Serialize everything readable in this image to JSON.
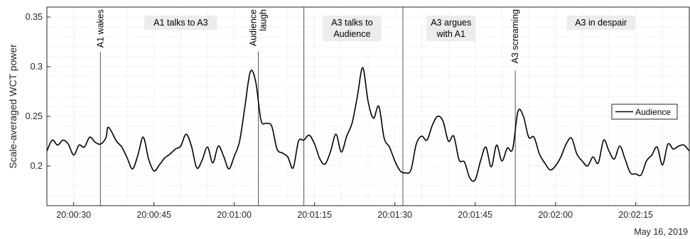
{
  "chart_data": {
    "type": "line",
    "title": "",
    "xlabel": "",
    "ylabel": "Scale-averaged WCT power",
    "x_range": [
      "20:00:25",
      "20:02:25"
    ],
    "ylim": [
      0.16,
      0.36
    ],
    "x_ticks": [
      "20:00:30",
      "20:00:45",
      "20:01:00",
      "20:01:15",
      "20:01:30",
      "20:01:45",
      "20:02:00",
      "20:02:15"
    ],
    "y_ticks": [
      0.2,
      0.25,
      0.3,
      0.35
    ],
    "y_tick_labels": [
      "0.2",
      "0.25",
      "0.3",
      "0.35"
    ],
    "date_label": "May 16, 2019",
    "grid": "minor dotted",
    "legend": {
      "placement": "right",
      "entries": [
        "Audience"
      ]
    },
    "series": [
      {
        "name": "Audience",
        "color": "#000000",
        "points": [
          [
            "20:00:25",
            0.215
          ],
          [
            "20:00:26",
            0.226
          ],
          [
            "20:00:27",
            0.221
          ],
          [
            "20:00:28",
            0.226
          ],
          [
            "20:00:29",
            0.222
          ],
          [
            "20:00:30",
            0.211
          ],
          [
            "20:00:31",
            0.221
          ],
          [
            "20:00:32",
            0.219
          ],
          [
            "20:00:33",
            0.229
          ],
          [
            "20:00:34",
            0.224
          ],
          [
            "20:00:35",
            0.222
          ],
          [
            "20:00:36",
            0.228
          ],
          [
            "20:00:36.5",
            0.239
          ],
          [
            "20:00:38",
            0.225
          ],
          [
            "20:00:39",
            0.219
          ],
          [
            "20:00:40",
            0.208
          ],
          [
            "20:00:41",
            0.197
          ],
          [
            "20:00:42",
            0.211
          ],
          [
            "20:00:43",
            0.229
          ],
          [
            "20:00:44",
            0.207
          ],
          [
            "20:00:45",
            0.195
          ],
          [
            "20:00:46",
            0.201
          ],
          [
            "20:00:47",
            0.208
          ],
          [
            "20:00:48",
            0.212
          ],
          [
            "20:00:49",
            0.217
          ],
          [
            "20:00:50",
            0.22
          ],
          [
            "20:00:51",
            0.232
          ],
          [
            "20:00:52",
            0.22
          ],
          [
            "20:00:53",
            0.198
          ],
          [
            "20:00:54",
            0.206
          ],
          [
            "20:00:55",
            0.219
          ],
          [
            "20:00:56",
            0.203
          ],
          [
            "20:00:57",
            0.22
          ],
          [
            "20:00:58",
            0.21
          ],
          [
            "20:00:59",
            0.197
          ],
          [
            "20:01:00",
            0.21
          ],
          [
            "20:01:01",
            0.225
          ],
          [
            "20:01:02",
            0.26
          ],
          [
            "20:01:03",
            0.295
          ],
          [
            "20:01:04",
            0.285
          ],
          [
            "20:01:05",
            0.246
          ],
          [
            "20:01:06",
            0.243
          ],
          [
            "20:01:07",
            0.24
          ],
          [
            "20:01:08",
            0.217
          ],
          [
            "20:01:09",
            0.213
          ],
          [
            "20:01:10",
            0.209
          ],
          [
            "20:01:11",
            0.198
          ],
          [
            "20:01:12",
            0.225
          ],
          [
            "20:01:13",
            0.226
          ],
          [
            "20:01:14",
            0.231
          ],
          [
            "20:01:15",
            0.222
          ],
          [
            "20:01:16",
            0.207
          ],
          [
            "20:01:17",
            0.202
          ],
          [
            "20:01:18",
            0.215
          ],
          [
            "20:01:19",
            0.232
          ],
          [
            "20:01:20",
            0.214
          ],
          [
            "20:01:21",
            0.23
          ],
          [
            "20:01:22",
            0.243
          ],
          [
            "20:01:23",
            0.27
          ],
          [
            "20:01:24",
            0.299
          ],
          [
            "20:01:25",
            0.265
          ],
          [
            "20:01:26",
            0.248
          ],
          [
            "20:01:27",
            0.26
          ],
          [
            "20:01:28",
            0.228
          ],
          [
            "20:01:29",
            0.219
          ],
          [
            "20:01:30",
            0.205
          ],
          [
            "20:01:31",
            0.195
          ],
          [
            "20:01:32",
            0.193
          ],
          [
            "20:01:33",
            0.196
          ],
          [
            "20:01:34",
            0.222
          ],
          [
            "20:01:35",
            0.23
          ],
          [
            "20:01:36",
            0.226
          ],
          [
            "20:01:37",
            0.241
          ],
          [
            "20:01:38",
            0.25
          ],
          [
            "20:01:39",
            0.245
          ],
          [
            "20:01:40",
            0.225
          ],
          [
            "20:01:41",
            0.23
          ],
          [
            "20:01:42",
            0.206
          ],
          [
            "20:01:43",
            0.204
          ],
          [
            "20:01:44",
            0.188
          ],
          [
            "20:01:45",
            0.186
          ],
          [
            "20:01:46",
            0.205
          ],
          [
            "20:01:47",
            0.219
          ],
          [
            "20:01:48",
            0.199
          ],
          [
            "20:01:49",
            0.221
          ],
          [
            "20:01:50",
            0.205
          ],
          [
            "20:01:51",
            0.218
          ],
          [
            "20:01:52",
            0.217
          ],
          [
            "20:01:53",
            0.255
          ],
          [
            "20:01:54",
            0.25
          ],
          [
            "20:01:55",
            0.229
          ],
          [
            "20:01:56",
            0.229
          ],
          [
            "20:01:57",
            0.212
          ],
          [
            "20:01:58",
            0.203
          ],
          [
            "20:01:59",
            0.196
          ],
          [
            "20:02:00",
            0.2
          ],
          [
            "20:02:01",
            0.209
          ],
          [
            "20:02:02",
            0.222
          ],
          [
            "20:02:03",
            0.228
          ],
          [
            "20:02:04",
            0.212
          ],
          [
            "20:02:05",
            0.205
          ],
          [
            "20:02:06",
            0.2
          ],
          [
            "20:02:07",
            0.209
          ],
          [
            "20:02:08",
            0.203
          ],
          [
            "20:02:09",
            0.226
          ],
          [
            "20:02:10",
            0.215
          ],
          [
            "20:02:11",
            0.207
          ],
          [
            "20:02:12",
            0.22
          ],
          [
            "20:02:13",
            0.207
          ],
          [
            "20:02:14",
            0.193
          ],
          [
            "20:02:15",
            0.192
          ],
          [
            "20:02:16",
            0.191
          ],
          [
            "20:02:17",
            0.205
          ],
          [
            "20:02:18",
            0.211
          ],
          [
            "20:02:19",
            0.219
          ],
          [
            "20:02:20",
            0.201
          ],
          [
            "20:02:21",
            0.222
          ],
          [
            "20:02:22",
            0.217
          ],
          [
            "20:02:23",
            0.22
          ],
          [
            "20:02:24",
            0.221
          ],
          [
            "20:02:25",
            0.215
          ]
        ]
      }
    ],
    "event_lines": [
      {
        "time": "20:00:35",
        "label": [
          "A1 wakes"
        ],
        "text_top": true
      },
      {
        "time": "20:01:04.5",
        "label": [
          "Audience",
          "laugh"
        ],
        "text_top": true
      },
      {
        "time": "20:01:13",
        "label": [],
        "text_top": true
      },
      {
        "time": "20:01:31.5",
        "label": [],
        "text_top": true
      },
      {
        "time": "20:01:52.5",
        "label": [
          "A3 screaming"
        ],
        "text_top": true
      }
    ],
    "phase_labels": [
      {
        "center": "20:00:50",
        "label": [
          "A1 talks to A3"
        ]
      },
      {
        "center": "20:01:22",
        "label": [
          "A3 talks to",
          "Audience"
        ]
      },
      {
        "center": "20:01:40.5",
        "label": [
          "A3 argues",
          "with A1"
        ]
      },
      {
        "center": "20:02:08.5",
        "label": [
          "A3 in despair"
        ]
      }
    ]
  }
}
